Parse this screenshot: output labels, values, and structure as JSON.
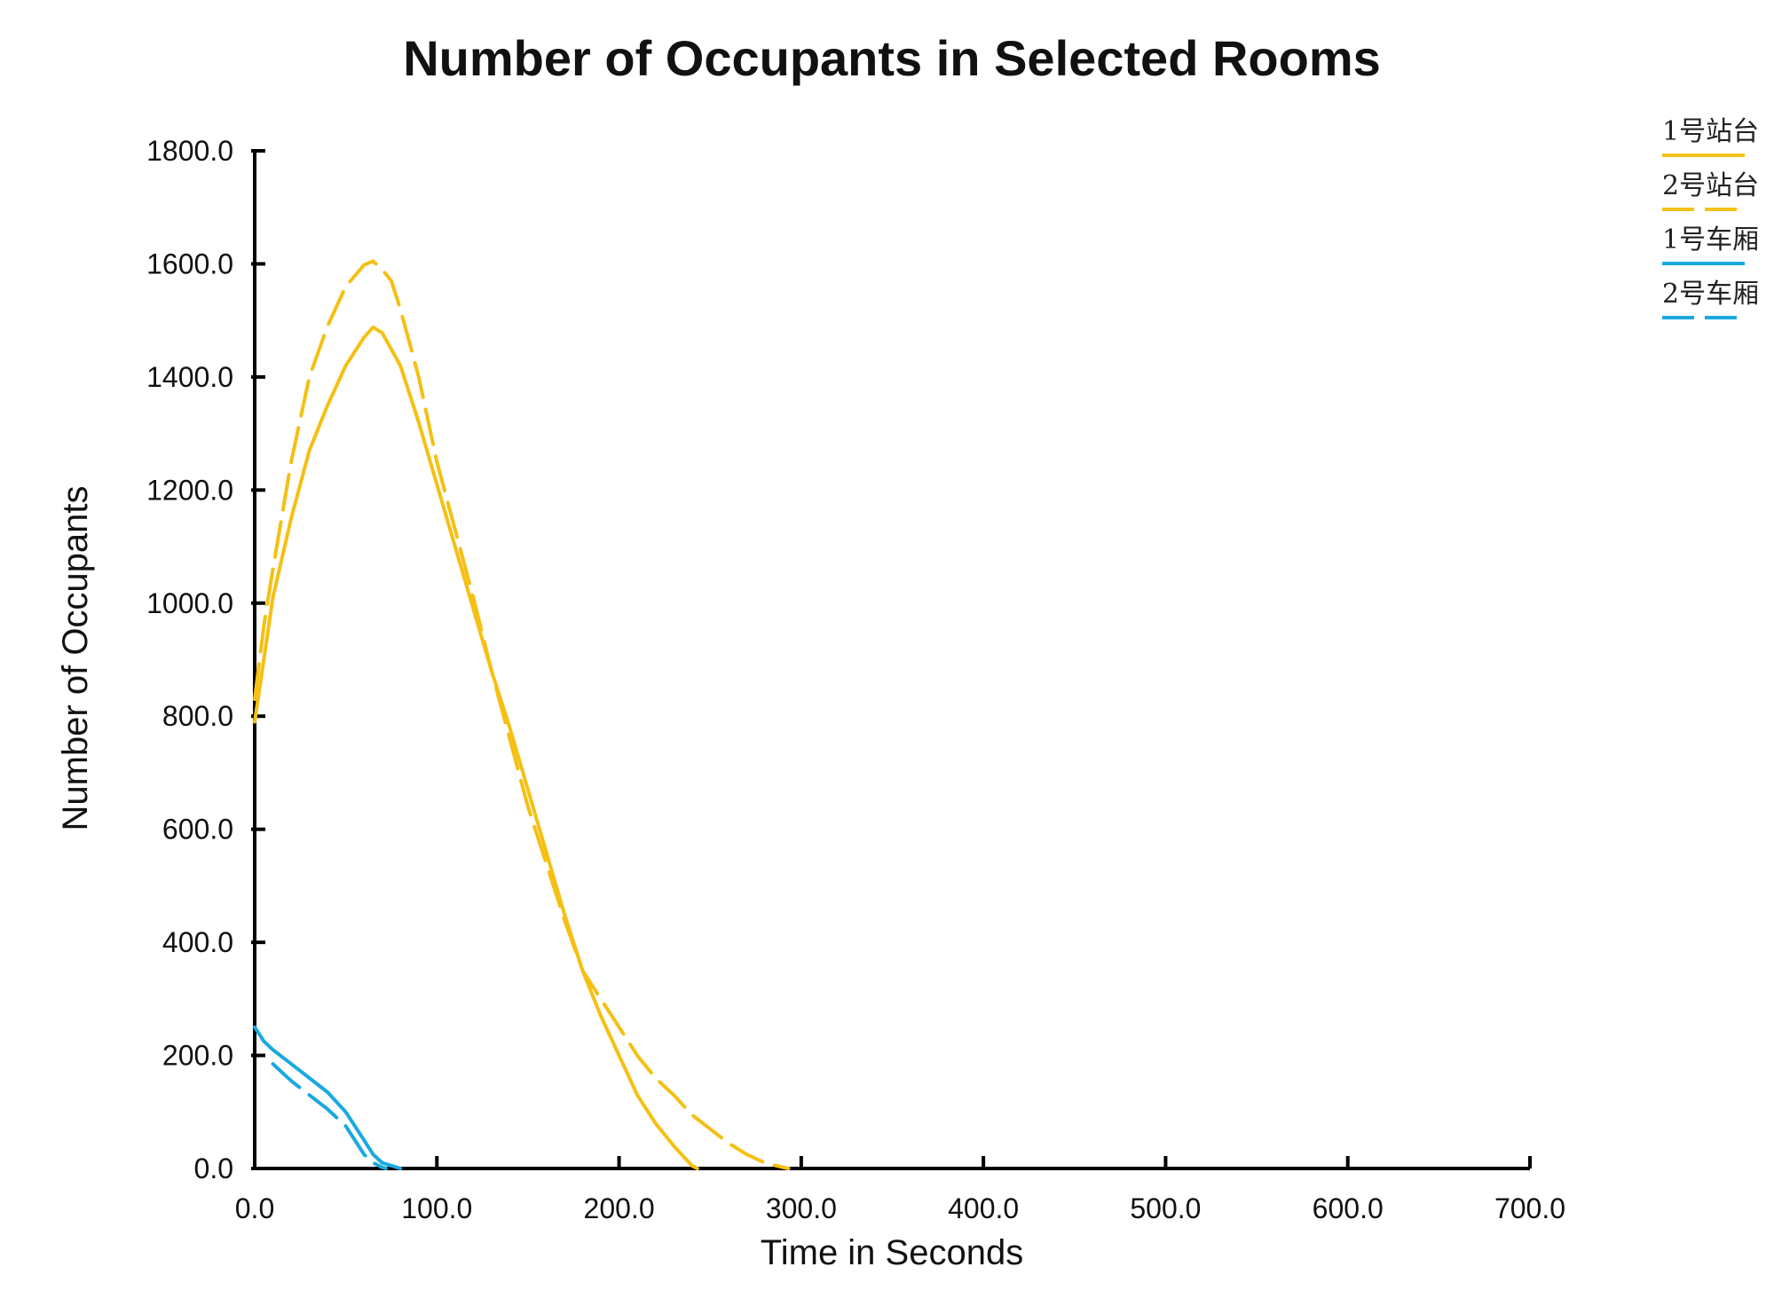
{
  "chart_data": {
    "type": "line",
    "title": "Number of Occupants in Selected Rooms",
    "xlabel": "Time in Seconds",
    "ylabel": "Number of Occupants",
    "xlim": [
      0,
      700
    ],
    "ylim": [
      0,
      1800
    ],
    "xticks": [
      "0.0",
      "100.0",
      "200.0",
      "300.0",
      "400.0",
      "500.0",
      "600.0",
      "700.0"
    ],
    "yticks": [
      "0.0",
      "200.0",
      "400.0",
      "600.0",
      "800.0",
      "1000.0",
      "1200.0",
      "1400.0",
      "1600.0",
      "1800.0"
    ],
    "grid": false,
    "legend_position": "top-right",
    "series": [
      {
        "name": "1号站台",
        "color": "#f5c013",
        "dash": "solid",
        "points": [
          [
            0,
            790
          ],
          [
            5,
            900
          ],
          [
            10,
            1010
          ],
          [
            20,
            1150
          ],
          [
            30,
            1270
          ],
          [
            40,
            1350
          ],
          [
            50,
            1420
          ],
          [
            60,
            1470
          ],
          [
            65,
            1488
          ],
          [
            70,
            1478
          ],
          [
            80,
            1420
          ],
          [
            90,
            1320
          ],
          [
            100,
            1210
          ],
          [
            110,
            1100
          ],
          [
            120,
            990
          ],
          [
            130,
            880
          ],
          [
            140,
            780
          ],
          [
            150,
            670
          ],
          [
            160,
            560
          ],
          [
            170,
            450
          ],
          [
            180,
            350
          ],
          [
            190,
            270
          ],
          [
            200,
            200
          ],
          [
            210,
            130
          ],
          [
            220,
            80
          ],
          [
            230,
            40
          ],
          [
            240,
            5
          ],
          [
            243,
            0
          ]
        ]
      },
      {
        "name": "2号站台",
        "color": "#f5c013",
        "dash": "dashed",
        "points": [
          [
            0,
            830
          ],
          [
            5,
            960
          ],
          [
            10,
            1060
          ],
          [
            20,
            1250
          ],
          [
            30,
            1400
          ],
          [
            40,
            1490
          ],
          [
            50,
            1560
          ],
          [
            60,
            1598
          ],
          [
            65,
            1605
          ],
          [
            70,
            1590
          ],
          [
            75,
            1570
          ],
          [
            80,
            1520
          ],
          [
            90,
            1400
          ],
          [
            100,
            1250
          ],
          [
            110,
            1130
          ],
          [
            120,
            1010
          ],
          [
            130,
            880
          ],
          [
            140,
            760
          ],
          [
            150,
            640
          ],
          [
            160,
            540
          ],
          [
            170,
            440
          ],
          [
            180,
            350
          ],
          [
            190,
            300
          ],
          [
            200,
            250
          ],
          [
            210,
            200
          ],
          [
            220,
            160
          ],
          [
            230,
            130
          ],
          [
            240,
            95
          ],
          [
            250,
            70
          ],
          [
            260,
            45
          ],
          [
            270,
            25
          ],
          [
            280,
            10
          ],
          [
            290,
            2
          ],
          [
            293,
            0
          ]
        ]
      },
      {
        "name": "1号车厢",
        "color": "#19a9e0",
        "dash": "solid",
        "points": [
          [
            0,
            250
          ],
          [
            5,
            225
          ],
          [
            10,
            210
          ],
          [
            20,
            185
          ],
          [
            30,
            160
          ],
          [
            40,
            135
          ],
          [
            50,
            100
          ],
          [
            55,
            75
          ],
          [
            60,
            50
          ],
          [
            65,
            25
          ],
          [
            70,
            10
          ],
          [
            75,
            5
          ],
          [
            80,
            0
          ]
        ]
      },
      {
        "name": "2号车厢",
        "color": "#19a9e0",
        "dash": "dashed",
        "points": [
          [
            10,
            185
          ],
          [
            15,
            170
          ],
          [
            20,
            155
          ],
          [
            30,
            130
          ],
          [
            40,
            105
          ],
          [
            50,
            75
          ],
          [
            55,
            50
          ],
          [
            60,
            25
          ],
          [
            65,
            10
          ],
          [
            70,
            2
          ],
          [
            72,
            0
          ]
        ]
      }
    ]
  }
}
